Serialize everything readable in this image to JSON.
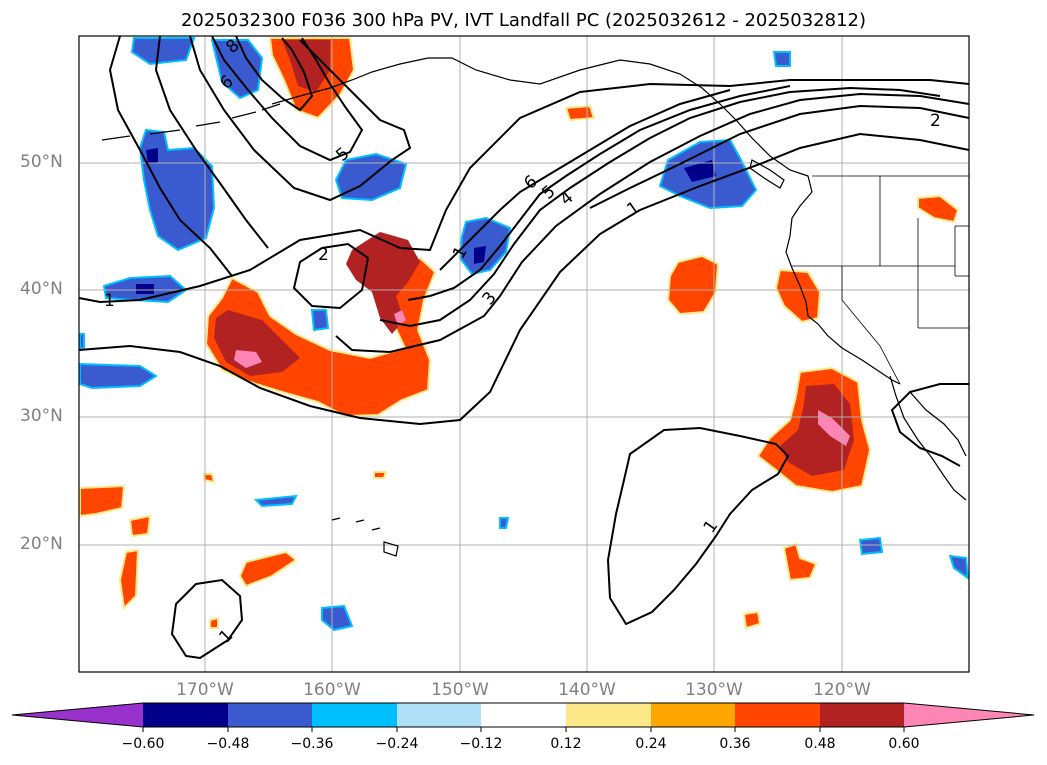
{
  "title": "2025032300 F036 300 hPa PV, IVT Landfall PC (2025032612 - 2025032812)",
  "lat_labels": [
    "50°N",
    "40°N",
    "30°N",
    "20°N"
  ],
  "lon_labels": [
    "170°W",
    "160°W",
    "150°W",
    "140°W",
    "130°W",
    "120°W"
  ],
  "colorbar": {
    "tick_labels": [
      "−0.60",
      "−0.48",
      "−0.36",
      "−0.24",
      "−0.12",
      "0.12",
      "0.24",
      "0.36",
      "0.48",
      "0.60"
    ],
    "colors": [
      "#9932cc",
      "#00008b",
      "#3a5bd0",
      "#00bfff",
      "#b0e0f8",
      "#ffffff",
      "#fde88a",
      "#ffa500",
      "#ff4500",
      "#b22222",
      "#ff85b5"
    ]
  },
  "contour_labels": [
    "8",
    "6",
    "5",
    "2",
    "1",
    "6",
    "5",
    "4",
    "1",
    "3",
    "2",
    "1",
    "1",
    "1"
  ]
}
